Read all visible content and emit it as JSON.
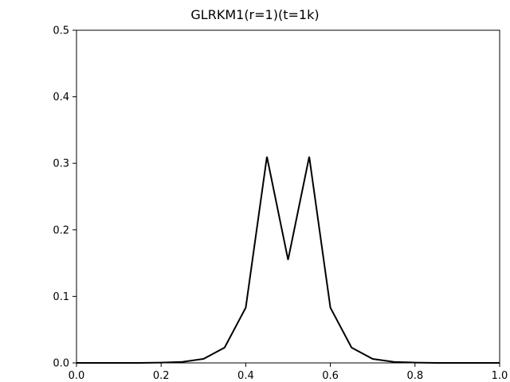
{
  "chart_data": {
    "type": "line",
    "title": "GLRKM1(r=1)(t=1k)",
    "xlabel": "",
    "ylabel": "",
    "xlim": [
      0.0,
      1.0
    ],
    "ylim": [
      0.0,
      0.5
    ],
    "x_ticks": [
      "0.0",
      "0.2",
      "0.4",
      "0.6",
      "0.8",
      "1.0"
    ],
    "y_ticks": [
      "0.0",
      "0.1",
      "0.2",
      "0.3",
      "0.4",
      "0.5"
    ],
    "grid": false,
    "series": [
      {
        "color": "#000000",
        "x": [
          0.0,
          0.05,
          0.1,
          0.15,
          0.2,
          0.25,
          0.3,
          0.35,
          0.4,
          0.45,
          0.5,
          0.55,
          0.6,
          0.65,
          0.7,
          0.75,
          0.8,
          0.85,
          0.9,
          0.95,
          1.0
        ],
        "y": [
          0.0,
          0.0,
          0.0,
          0.0,
          0.0005,
          0.0015,
          0.006,
          0.023,
          0.083,
          0.31,
          0.155,
          0.31,
          0.083,
          0.023,
          0.006,
          0.0015,
          0.0005,
          0.0,
          0.0,
          0.0,
          0.0
        ]
      }
    ]
  }
}
